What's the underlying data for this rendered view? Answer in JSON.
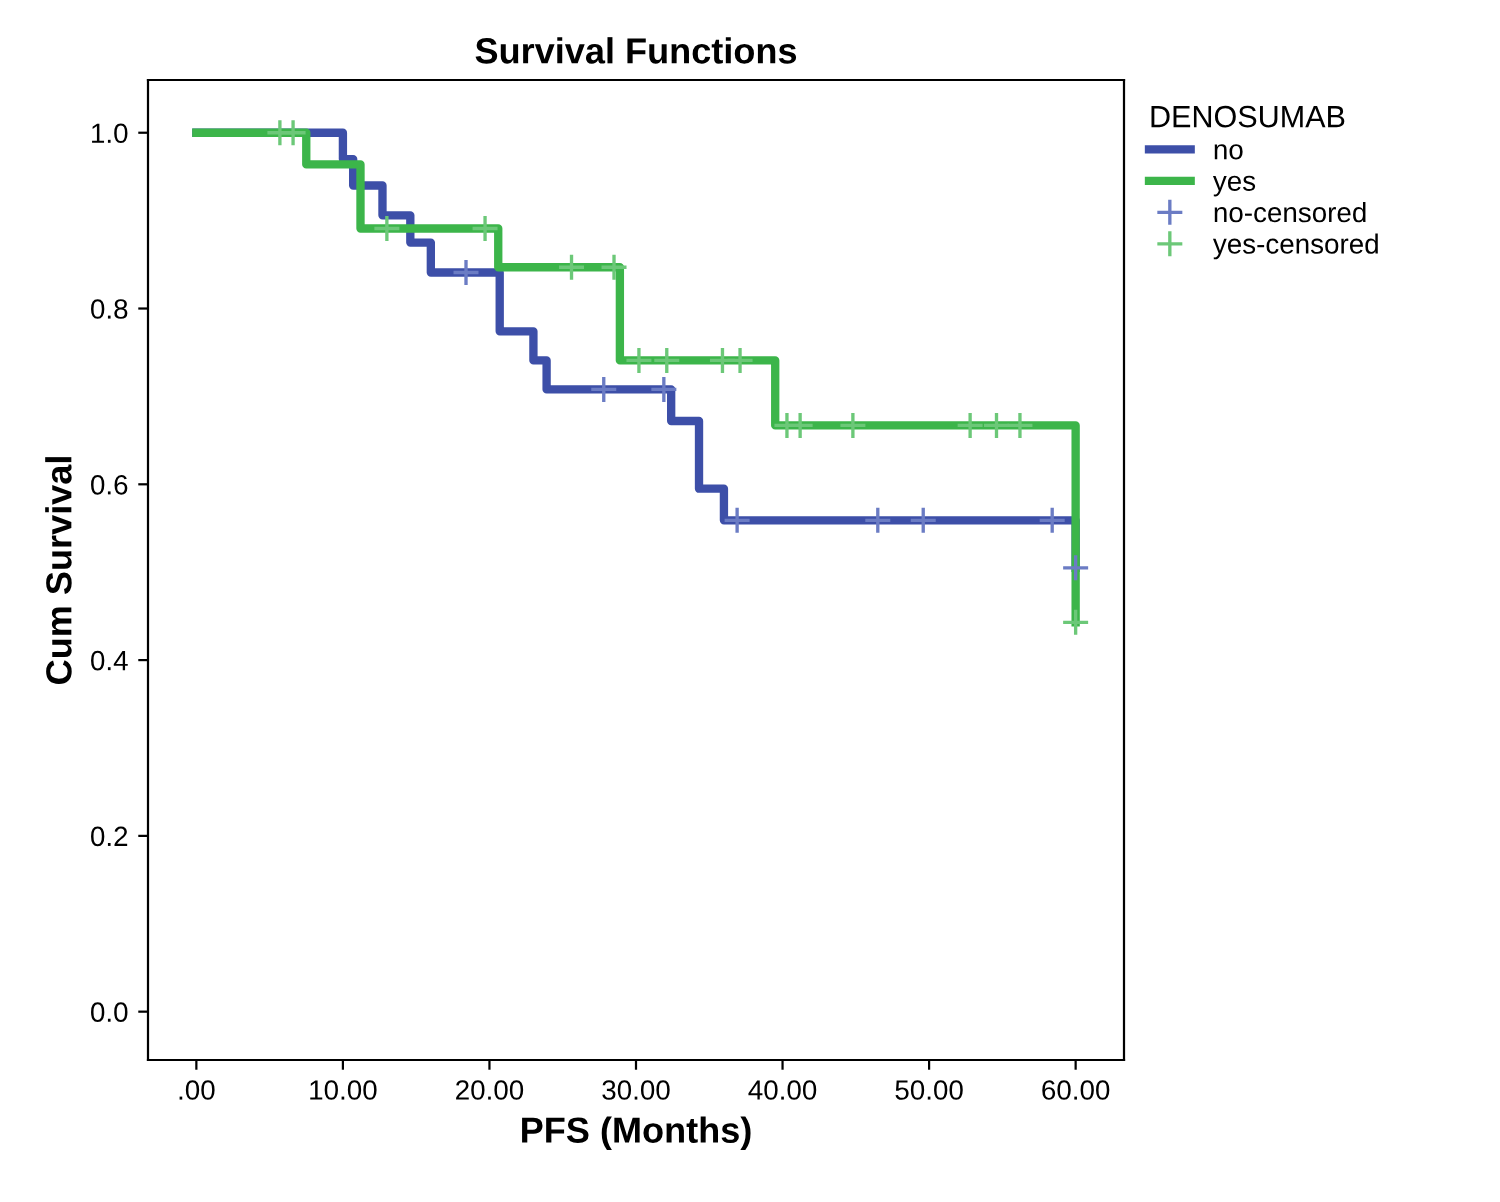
{
  "chart_data": {
    "type": "step",
    "title": "Survival Functions",
    "xlabel": "PFS (Months)",
    "ylabel": "Cum Survival",
    "legend_title": "DENOSUMAB",
    "legend": "right",
    "grid": false,
    "xlim": [
      -3.3,
      63.3
    ],
    "ylim": [
      -0.055,
      1.06
    ],
    "xticks": [
      {
        "value": 0,
        "label": ".00"
      },
      {
        "value": 10,
        "label": "10.00"
      },
      {
        "value": 20,
        "label": "20.00"
      },
      {
        "value": 30,
        "label": "30.00"
      },
      {
        "value": 40,
        "label": "40.00"
      },
      {
        "value": 50,
        "label": "50.00"
      },
      {
        "value": 60,
        "label": "60.00"
      }
    ],
    "yticks": [
      {
        "value": 0,
        "label": "0.0"
      },
      {
        "value": 0.2,
        "label": "0.2"
      },
      {
        "value": 0.4,
        "label": "0.4"
      },
      {
        "value": 0.6,
        "label": "0.6"
      },
      {
        "value": 0.8,
        "label": "0.8"
      },
      {
        "value": 1.0,
        "label": "1.0"
      }
    ],
    "series": [
      {
        "name": "no",
        "type": "step",
        "color": "#3d4fa8",
        "x": [
          0,
          10.0,
          10.7,
          12.7,
          14.6,
          16.0,
          20.7,
          23.0,
          23.9,
          32.4,
          34.3,
          36.0,
          60
        ],
        "values": [
          1.0,
          0.97,
          0.94,
          0.906,
          0.875,
          0.841,
          0.774,
          0.741,
          0.708,
          0.672,
          0.595,
          0.559,
          0.505
        ]
      },
      {
        "name": "yes",
        "type": "step",
        "color": "#3cb54a",
        "x": [
          0,
          7.5,
          11.2,
          20.6,
          28.9,
          39.5,
          60
        ],
        "values": [
          1.0,
          0.964,
          0.891,
          0.847,
          0.741,
          0.667,
          0.443
        ]
      },
      {
        "name": "no-censored",
        "type": "scatter",
        "marker": "cross",
        "color": "#6b7cc4",
        "x": [
          18.4,
          27.8,
          31.9,
          36.9,
          46.5,
          49.6,
          58.4,
          60
        ],
        "values": [
          0.841,
          0.708,
          0.708,
          0.559,
          0.559,
          0.559,
          0.559,
          0.505
        ]
      },
      {
        "name": "yes-censored",
        "type": "scatter",
        "marker": "cross",
        "color": "#6cc878",
        "x": [
          5.7,
          6.6,
          13.0,
          19.7,
          25.6,
          28.5,
          30.2,
          32.1,
          35.9,
          37.1,
          40.3,
          41.2,
          44.8,
          52.8,
          54.6,
          56.2,
          60
        ],
        "values": [
          1.0,
          1.0,
          0.891,
          0.891,
          0.847,
          0.847,
          0.741,
          0.741,
          0.741,
          0.741,
          0.667,
          0.667,
          0.667,
          0.667,
          0.667,
          0.667,
          0.443
        ]
      }
    ]
  }
}
